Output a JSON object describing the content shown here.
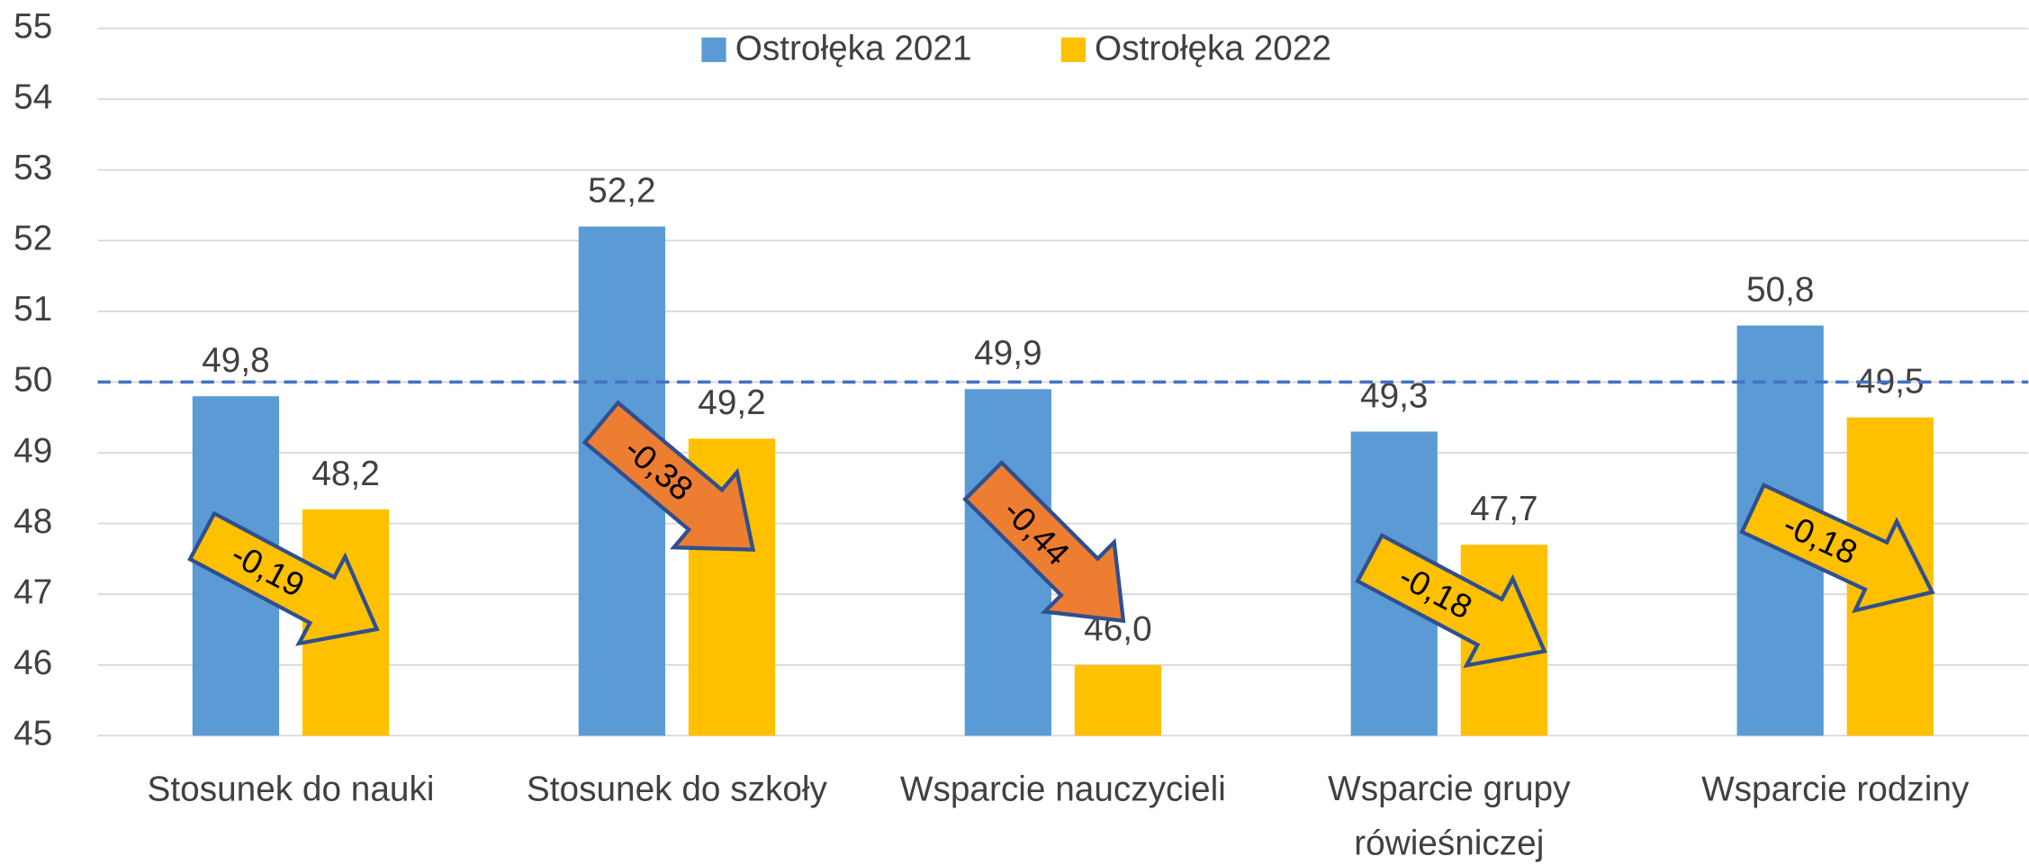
{
  "chart_data": {
    "type": "bar",
    "categories": [
      "Stosunek do nauki",
      "Stosunek do szkoły",
      "Wsparcie nauczycieli",
      "Wsparcie grupy rówieśniczej",
      "Wsparcie rodziny"
    ],
    "series": [
      {
        "name": "Ostrołęka 2021",
        "color": "#5b9bd5",
        "values": [
          49.8,
          52.2,
          49.9,
          49.3,
          50.8
        ],
        "value_labels": [
          "49,8",
          "52,2",
          "49,9",
          "49,3",
          "50,8"
        ]
      },
      {
        "name": "Ostrołęka 2022",
        "color": "#ffc000",
        "values": [
          48.2,
          49.2,
          46.0,
          47.7,
          49.5
        ],
        "value_labels": [
          "48,2",
          "49,2",
          "46,0",
          "47,7",
          "49,5"
        ]
      }
    ],
    "ylim": [
      45,
      55
    ],
    "yticks": [
      45,
      46,
      47,
      48,
      49,
      50,
      51,
      52,
      53,
      54,
      55
    ],
    "grid": true,
    "legend": "top",
    "reference_line": {
      "value": 50,
      "color": "#4472c4"
    },
    "annotations": [
      {
        "text": "-0,19",
        "color": "#ffc000"
      },
      {
        "text": "-0,38",
        "color": "#ed7d31"
      },
      {
        "text": "-0,44",
        "color": "#ed7d31"
      },
      {
        "text": "-0,18",
        "color": "#ffc000"
      },
      {
        "text": "-0,18",
        "color": "#ffc000"
      }
    ]
  }
}
